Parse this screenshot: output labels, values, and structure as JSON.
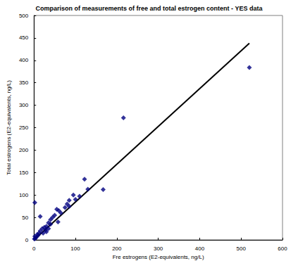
{
  "chart_data": {
    "type": "scatter",
    "title": "Comparison of measurements of free and total estrogen content - YES data",
    "x_label": "Fre estrogens (E2-equivalents, ng/L)",
    "y_label": "Total estrogens (E2-equivalents, ng/L)",
    "xlim": [
      0,
      600
    ],
    "xticks": [
      0,
      100,
      200,
      300,
      400,
      500,
      600
    ],
    "ylim": [
      0,
      500
    ],
    "yticks": [
      0,
      50,
      100,
      150,
      200,
      250,
      300,
      350,
      400,
      450,
      500
    ],
    "grid": false,
    "series": [
      {
        "type": "scatter",
        "color": "#000080",
        "marker": "diamond",
        "x": [
          2,
          520,
          216,
          167,
          130,
          122,
          110,
          95,
          100,
          85,
          80,
          85,
          75,
          60,
          55,
          65,
          50,
          58,
          45,
          40,
          35,
          30,
          28,
          25,
          20,
          15,
          15,
          12,
          10,
          8,
          5,
          3,
          2,
          1,
          40,
          35,
          30,
          22
        ],
        "values": [
          83,
          384,
          272,
          112,
          113,
          135,
          97,
          100,
          90,
          88,
          80,
          75,
          72,
          65,
          68,
          60,
          55,
          40,
          50,
          45,
          38,
          30,
          22,
          28,
          25,
          52,
          20,
          15,
          10,
          12,
          5,
          3,
          8,
          2,
          35,
          25,
          18,
          15
        ]
      },
      {
        "type": "line",
        "color": "#000000",
        "line_style": "solid",
        "x": [
          0,
          520
        ],
        "values": [
          0,
          438
        ]
      }
    ]
  }
}
